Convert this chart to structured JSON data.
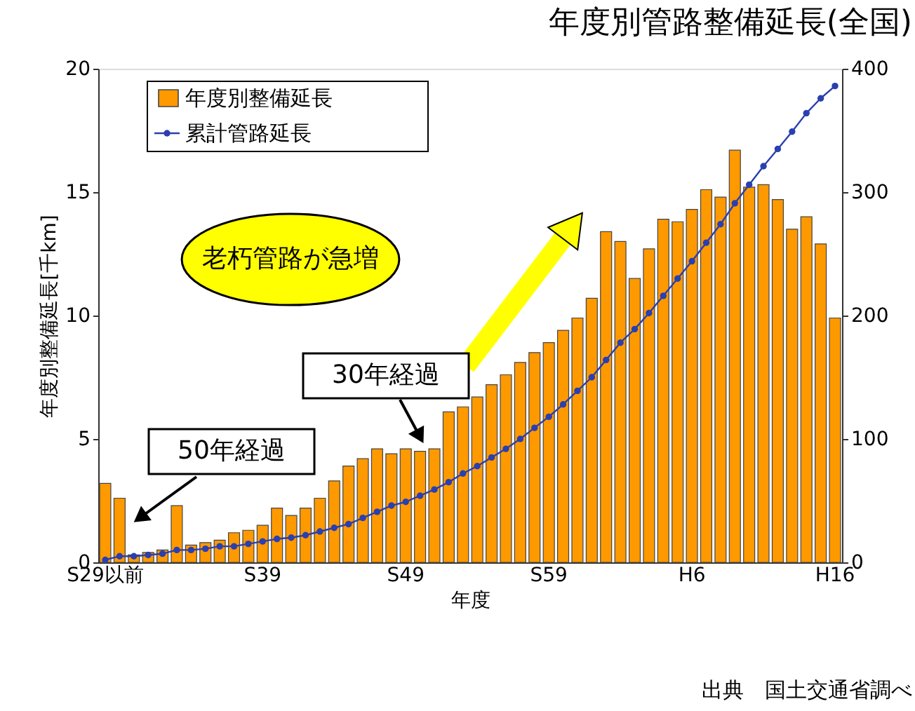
{
  "chart_data": {
    "type": "bar",
    "title": "年度別管路整備延長(全国)",
    "xlabel": "年度",
    "ylabel": "年度別整備延長[千km]",
    "categories": [
      "S29以前",
      null,
      null,
      null,
      null,
      null,
      null,
      null,
      null,
      null,
      null,
      "S39",
      null,
      null,
      null,
      null,
      null,
      null,
      null,
      null,
      null,
      "S49",
      null,
      null,
      null,
      null,
      null,
      null,
      null,
      null,
      null,
      "S59",
      null,
      null,
      null,
      null,
      null,
      null,
      null,
      null,
      null,
      "H6",
      null,
      null,
      null,
      null,
      null,
      null,
      null,
      null,
      null,
      "H16"
    ],
    "series": [
      {
        "name": "年度別整備延長",
        "color": "#ff9900",
        "values": [
          3.2,
          2.6,
          0.3,
          0.4,
          0.5,
          2.3,
          0.7,
          0.8,
          0.9,
          1.2,
          1.3,
          1.5,
          2.2,
          1.9,
          2.2,
          2.6,
          3.3,
          3.9,
          4.2,
          4.6,
          4.4,
          4.6,
          4.5,
          4.6,
          6.1,
          6.3,
          6.7,
          7.2,
          7.6,
          8.1,
          8.5,
          8.9,
          9.4,
          9.9,
          10.7,
          13.4,
          13.0,
          11.5,
          12.7,
          13.9,
          13.8,
          14.3,
          15.1,
          14.8,
          16.7,
          15.2,
          15.3,
          14.7,
          13.5,
          14.0,
          12.9,
          9.9
        ]
      },
      {
        "name": "累計管路延長",
        "type": "line",
        "axis": "y2",
        "color": "#2a3fb0",
        "values": [
          2,
          5,
          5,
          6,
          7,
          10,
          10,
          11,
          13,
          13,
          15,
          17,
          19,
          20,
          22,
          25,
          28,
          31,
          36,
          41,
          46,
          49,
          54,
          59,
          65,
          72,
          78,
          85,
          92,
          100,
          109,
          118,
          128,
          139,
          150,
          164,
          178,
          189,
          202,
          216,
          230,
          244,
          259,
          274,
          291,
          306,
          321,
          335,
          349,
          364,
          376,
          386
        ]
      }
    ],
    "ylim": [
      0,
      20
    ],
    "yticks": [
      0,
      5,
      10,
      15,
      20
    ],
    "y2lim": [
      0,
      400
    ],
    "y2ticks": [
      0,
      100,
      200,
      300,
      400
    ],
    "grid": false,
    "legend": "top left",
    "marker": "circle",
    "line_style": "solid",
    "annotations": [
      "老朽管路が急増",
      "30年経過",
      "50年経過",
      "出典　国土交通省調べ"
    ]
  }
}
